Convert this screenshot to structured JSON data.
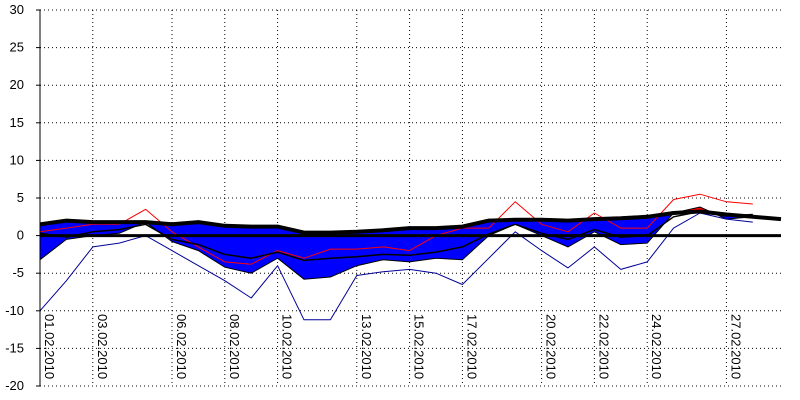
{
  "chart_data": {
    "type": "area",
    "grid": true,
    "xlabel": "",
    "ylabel": "",
    "ylim": [
      -20,
      30
    ],
    "y_ticks": [
      30,
      25,
      20,
      15,
      10,
      5,
      0,
      -5,
      -10,
      -15,
      -20
    ],
    "x_tick_labels": [
      {
        "day": 1,
        "label": "01.02.2010"
      },
      {
        "day": 3,
        "label": "03.02.2010"
      },
      {
        "day": 6,
        "label": "06.02.2010"
      },
      {
        "day": 8,
        "label": "08.02.2010"
      },
      {
        "day": 10,
        "label": "10.02.2010"
      },
      {
        "day": 13,
        "label": "13.02.2010"
      },
      {
        "day": 15,
        "label": "15.02.2010"
      },
      {
        "day": 17,
        "label": "17.02.2010"
      },
      {
        "day": 20,
        "label": "20.02.2010"
      },
      {
        "day": 22,
        "label": "22.02.2010"
      },
      {
        "day": 24,
        "label": "24.02.2010"
      },
      {
        "day": 27,
        "label": "27.02.2010"
      }
    ],
    "x": [
      1,
      2,
      3,
      4,
      5,
      6,
      7,
      8,
      9,
      10,
      11,
      12,
      13,
      14,
      15,
      16,
      17,
      18,
      19,
      20,
      21,
      22,
      23,
      24,
      25,
      26,
      27,
      28
    ],
    "colors": {
      "below": "#0000ff",
      "above": "#ff0000",
      "mean": "#000000",
      "max": "#ff0000",
      "min": "#000099"
    },
    "series": [
      {
        "values": [
          1.5,
          2,
          1.8,
          1.8,
          1.8,
          1.5,
          1.8,
          1.3,
          1.2,
          1.2,
          0.4,
          0.4,
          0.5,
          0.7,
          1,
          1,
          1.2,
          2,
          2.1,
          2.1,
          2,
          2.2,
          2.3,
          2.5,
          3,
          3.2,
          2.8,
          2.5
        ]
      },
      {
        "values": [
          -3.2,
          -0.5,
          0,
          0.3,
          1.8,
          -0.8,
          -2,
          -4.2,
          -5,
          -3,
          -5.8,
          -5.5,
          -4,
          -3.2,
          -3.5,
          -3,
          -3.2,
          0,
          1.5,
          0,
          -1.5,
          0.5,
          -1.2,
          -1,
          3,
          3.8,
          2.2,
          2.5
        ]
      },
      {
        "values": [
          0.5,
          1,
          1.5,
          1.5,
          3.5,
          0.5,
          -1.5,
          -3.5,
          -3.8,
          -2,
          -3,
          -1.8,
          -1.8,
          -1.5,
          -2,
          0,
          1,
          1,
          4.5,
          1.5,
          0.5,
          3,
          1,
          1,
          4.8,
          5.5,
          4.5,
          4.2
        ]
      },
      {
        "values": [
          -10,
          -6,
          -1.5,
          -1,
          0,
          -2,
          -4,
          -6,
          -8.3,
          -4,
          -11.2,
          -11.2,
          -5.3,
          -4.8,
          -4.5,
          -5,
          -6.5,
          -3,
          0.5,
          -2,
          -4.3,
          -1.5,
          -4.5,
          -3.5,
          1,
          3,
          2.2,
          1.8
        ]
      },
      {
        "values": [
          0.3,
          -0.2,
          0.5,
          0.8,
          1.5,
          -0.5,
          -1.2,
          -2.5,
          -3,
          -2.2,
          -3.3,
          -3,
          -2.8,
          -2.5,
          -2.6,
          -2.2,
          -1.5,
          0.2,
          1.5,
          0.3,
          -0.5,
          0.8,
          -0.2,
          0,
          2.5,
          3.2,
          2.6,
          2.8
        ]
      }
    ]
  }
}
